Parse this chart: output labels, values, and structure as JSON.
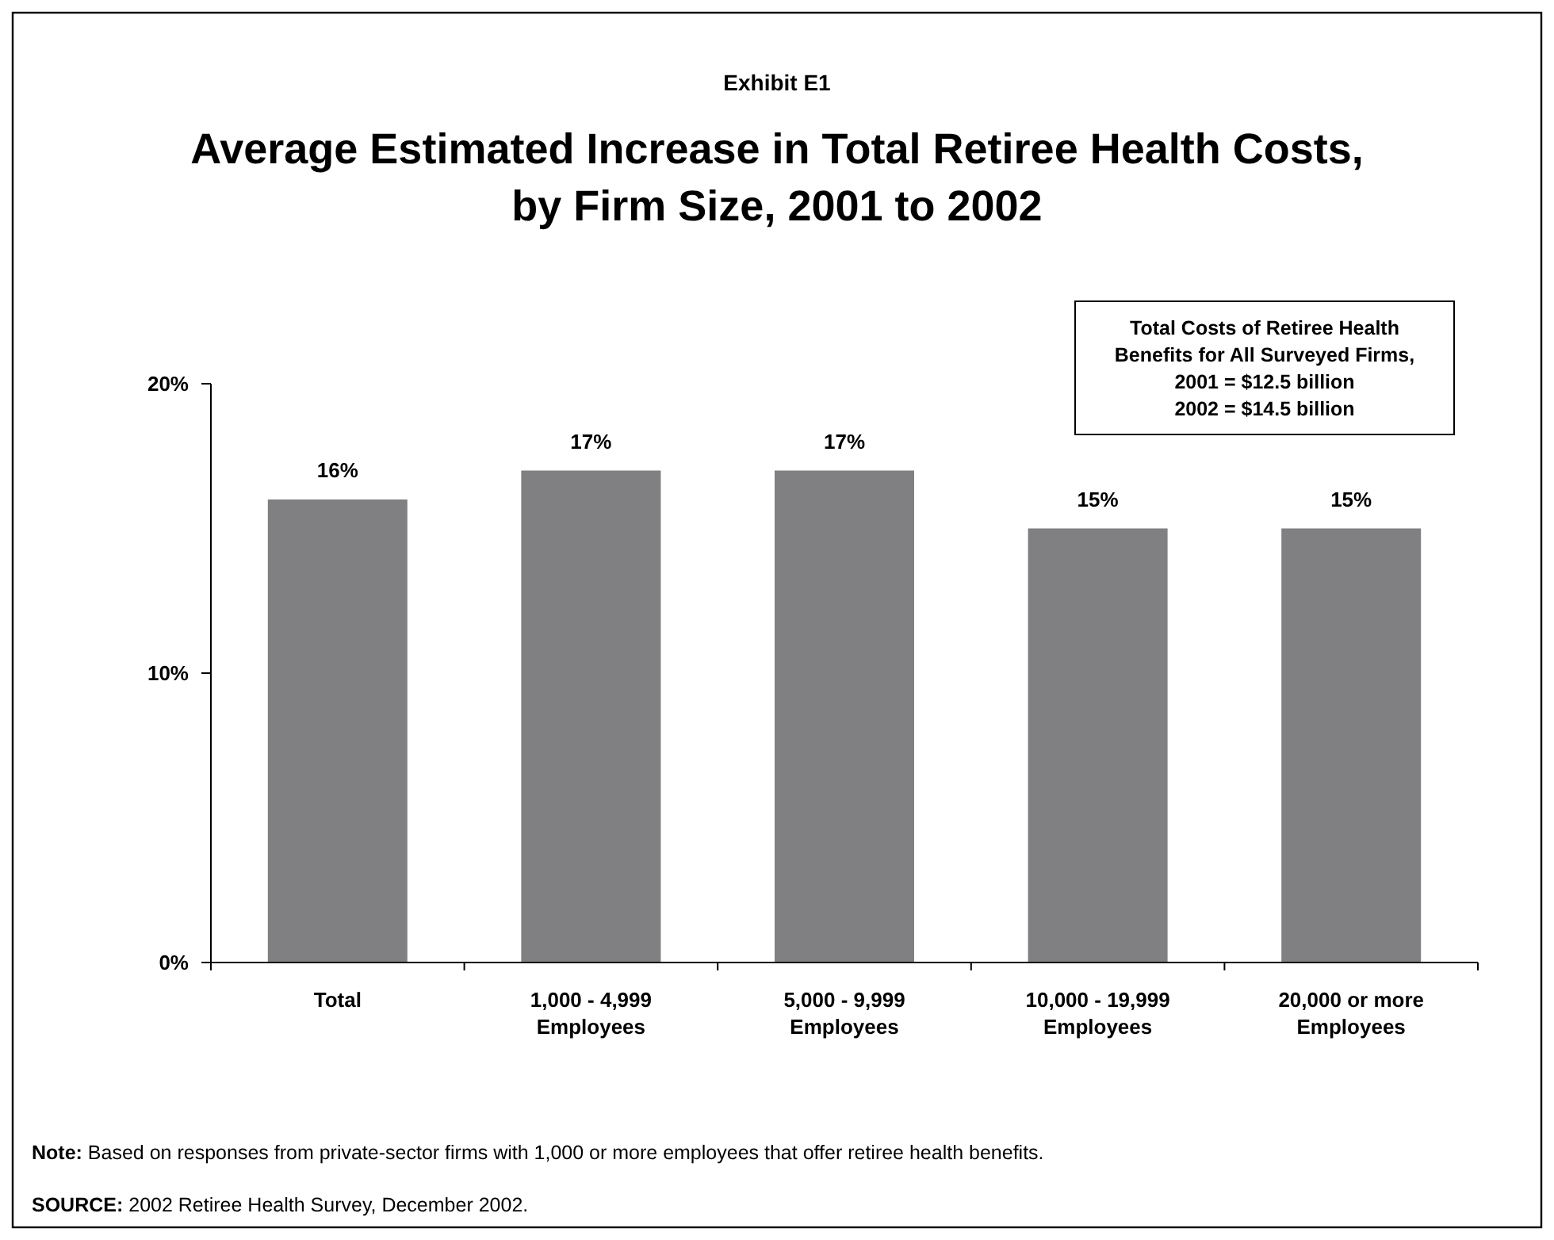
{
  "chart_data": {
    "type": "bar",
    "subtitle": "Exhibit E1",
    "title": "Average Estimated Increase in Total Retiree Health Costs,\nby Firm Size, 2001 to 2002",
    "categories": [
      "Total",
      "1,000 - 4,999\nEmployees",
      "5,000 - 9,999\nEmployees",
      "10,000 - 19,999\nEmployees",
      "20,000 or more\nEmployees"
    ],
    "values": [
      16,
      17,
      17,
      15,
      15
    ],
    "value_labels": [
      "16%",
      "17%",
      "17%",
      "15%",
      "15%"
    ],
    "color": "#808083",
    "ylim": [
      0,
      20
    ],
    "yticks": [
      {
        "value": 0,
        "label": "0%"
      },
      {
        "value": 10,
        "label": "10%"
      },
      {
        "value": 20,
        "label": "20%"
      }
    ],
    "grid": false,
    "annotations": [
      "Total Costs of Retiree Health\nBenefits for All Surveyed Firms,\n2001 = $12.5 billion\n2002 = $14.5 billion",
      "Note: Based on responses from private-sector firms with 1,000 or more employees that offer retiree health benefits.",
      "SOURCE: 2002 Retiree Health Survey, December 2002."
    ]
  }
}
